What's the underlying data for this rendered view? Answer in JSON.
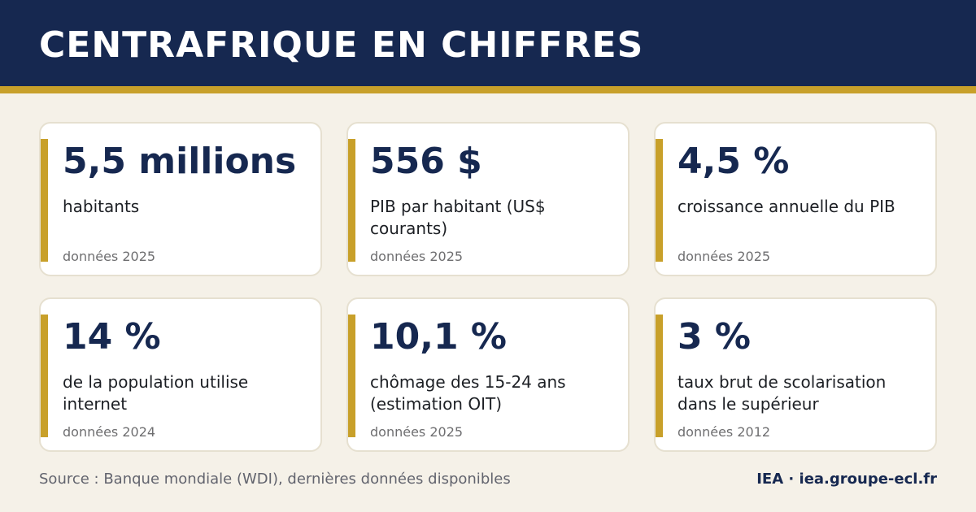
{
  "header": {
    "title": "CENTRAFRIQUE EN CHIFFRES"
  },
  "colors": {
    "header_background": "#162850",
    "accent_gold": "#c8a02a",
    "page_background": "#f5f1e8",
    "card_background": "#ffffff",
    "value_text": "#162850"
  },
  "cards": [
    {
      "value": "5,5 millions",
      "label": "habitants",
      "year": "données 2025"
    },
    {
      "value": "556 $",
      "label": "PIB par habitant (US$ courants)",
      "year": "données 2025"
    },
    {
      "value": "4,5 %",
      "label": "croissance annuelle du PIB",
      "year": "données 2025"
    },
    {
      "value": "14 %",
      "label": "de la population utilise internet",
      "year": "données 2024"
    },
    {
      "value": "10,1 %",
      "label": "chômage des 15-24 ans (estimation OIT)",
      "year": "données 2025"
    },
    {
      "value": "3 %",
      "label": "taux brut de scolarisation dans le supérieur",
      "year": "données 2012"
    }
  ],
  "footer": {
    "source": "Source : Banque mondiale (WDI), dernières données disponibles",
    "brand": "IEA · iea.groupe-ecl.fr"
  }
}
